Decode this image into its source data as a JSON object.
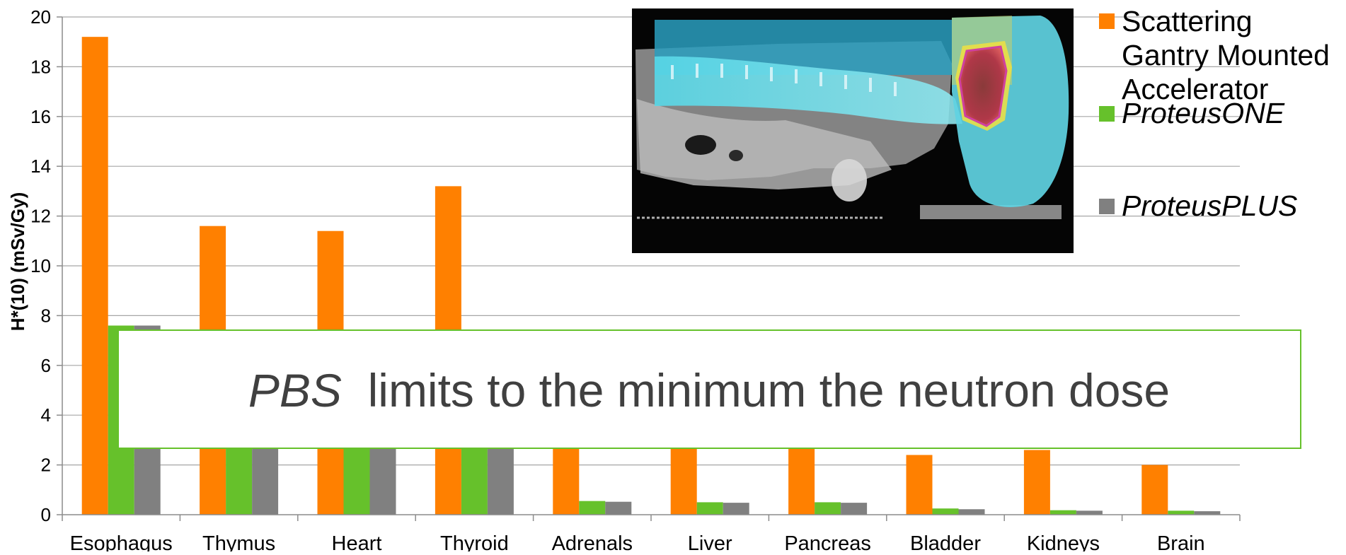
{
  "chart_data": {
    "type": "bar",
    "title": "",
    "xlabel": "",
    "ylabel": "H*(10) (mSv/Gy)",
    "ylim": [
      0,
      20
    ],
    "yticks": [
      "0",
      "2",
      "4",
      "6",
      "8",
      "10",
      "12",
      "14",
      "16",
      "18",
      "20"
    ],
    "grid": true,
    "legend_position": "right",
    "categories": [
      "Esophagus",
      "Thymus",
      "Heart",
      "Thyroid",
      "Adrenals",
      "Liver",
      "Pancreas",
      "Bladder",
      "Kidneys",
      "Brain"
    ],
    "series": [
      {
        "name": "Scattering Gantry Mounted Accelerator",
        "legend_lines": [
          "Scattering",
          "Gantry Mounted",
          "Accelerator"
        ],
        "italic": false,
        "color": "#ff8000",
        "values": [
          19.2,
          11.6,
          11.4,
          13.2,
          3.3,
          3.1,
          3.0,
          2.4,
          2.6,
          2.0
        ]
      },
      {
        "name": "ProteusONE",
        "legend_lines": [
          "ProteusONE"
        ],
        "italic": true,
        "color": "#66c12b",
        "values": [
          7.6,
          3.0,
          3.0,
          3.0,
          0.55,
          0.5,
          0.5,
          0.25,
          0.18,
          0.16
        ]
      },
      {
        "name": "ProteusPLUS",
        "legend_lines": [
          "ProteusPLUS"
        ],
        "italic": true,
        "color": "#808080",
        "values": [
          7.6,
          3.0,
          3.0,
          3.0,
          0.52,
          0.48,
          0.48,
          0.22,
          0.16,
          0.14
        ]
      }
    ],
    "inset_image": "sagittal CT scan with dose overlay",
    "callout": {
      "italic_part": "PBS",
      "text": "limits to the minimum the neutron dose",
      "border_color": "#66c12b",
      "text_color": "#404040"
    }
  }
}
